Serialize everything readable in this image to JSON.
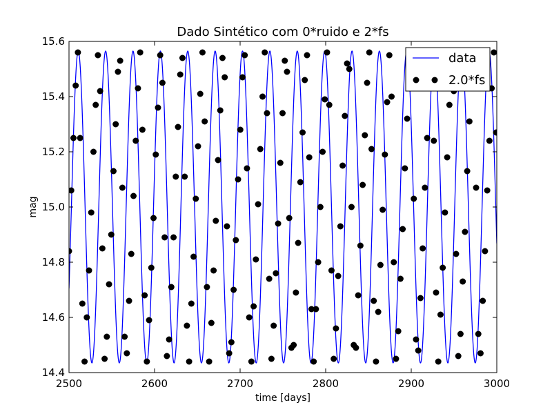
{
  "chart_data": {
    "type": "line",
    "title": "Dado Sintético com 0*ruido e 2*fs",
    "xlabel": "time [days]",
    "ylabel": "mag",
    "xlim": [
      2500,
      3000
    ],
    "ylim": [
      14.4,
      15.6
    ],
    "grid": false,
    "legend": {
      "placement": "top-right",
      "entries": [
        "data",
        "2.0*fs"
      ]
    },
    "x_ticks": [
      "2500",
      "2600",
      "2700",
      "2800",
      "2900",
      "3000"
    ],
    "y_ticks": [
      "14.4",
      "14.6",
      "14.8",
      "15.0",
      "15.2",
      "15.4",
      "15.6"
    ],
    "series": [
      {
        "name": "data",
        "kind": "line",
        "color": "#0000ff",
        "model": {
          "mean": 15.0,
          "amplitude": 0.565,
          "period_days": 32.0,
          "phase_ref_time": 2510.8
        }
      },
      {
        "name": "2.0*fs",
        "kind": "markers",
        "color": "#000000",
        "points": [
          [
            2500,
            14.84
          ],
          [
            2502.6,
            15.06
          ],
          [
            2505.2,
            15.25
          ],
          [
            2507.8,
            15.44
          ],
          [
            2510.4,
            15.56
          ],
          [
            2513.0,
            15.25
          ],
          [
            2515.6,
            14.65
          ],
          [
            2518.2,
            14.44
          ],
          [
            2520.8,
            14.6
          ],
          [
            2523.4,
            14.77
          ],
          [
            2526.0,
            14.98
          ],
          [
            2528.6,
            15.2
          ],
          [
            2531.2,
            15.37
          ],
          [
            2533.8,
            15.55
          ],
          [
            2536.4,
            15.42
          ],
          [
            2539.0,
            14.85
          ],
          [
            2541.6,
            14.45
          ],
          [
            2544.2,
            14.53
          ],
          [
            2546.8,
            14.72
          ],
          [
            2549.4,
            14.9
          ],
          [
            2552.0,
            15.13
          ],
          [
            2554.6,
            15.3
          ],
          [
            2557.2,
            15.49
          ],
          [
            2559.8,
            15.53
          ],
          [
            2562.4,
            15.07
          ],
          [
            2565.0,
            14.53
          ],
          [
            2567.6,
            14.47
          ],
          [
            2570.2,
            14.66
          ],
          [
            2572.8,
            14.83
          ],
          [
            2575.4,
            15.04
          ],
          [
            2578.0,
            15.24
          ],
          [
            2580.6,
            15.43
          ],
          [
            2583.2,
            15.56
          ],
          [
            2585.8,
            15.28
          ],
          [
            2588.4,
            14.68
          ],
          [
            2591.0,
            14.44
          ],
          [
            2593.6,
            14.59
          ],
          [
            2596.2,
            14.78
          ],
          [
            2598.8,
            14.96
          ],
          [
            2601.4,
            15.19
          ],
          [
            2604.0,
            15.36
          ],
          [
            2606.6,
            15.55
          ],
          [
            2609.2,
            15.45
          ],
          [
            2611.8,
            14.89
          ],
          [
            2614.4,
            14.46
          ],
          [
            2617.0,
            14.52
          ],
          [
            2619.6,
            14.71
          ],
          [
            2622.2,
            14.89
          ],
          [
            2624.8,
            15.11
          ],
          [
            2627.4,
            15.29
          ],
          [
            2630.0,
            15.48
          ],
          [
            2632.6,
            15.54
          ],
          [
            2635.2,
            15.11
          ],
          [
            2637.8,
            14.57
          ],
          [
            2640.4,
            14.44
          ],
          [
            2643.0,
            14.65
          ],
          [
            2645.6,
            14.82
          ],
          [
            2648.2,
            15.03
          ],
          [
            2650.8,
            15.22
          ],
          [
            2653.4,
            15.41
          ],
          [
            2656.0,
            15.56
          ],
          [
            2658.6,
            15.31
          ],
          [
            2661.2,
            14.71
          ],
          [
            2663.8,
            14.44
          ],
          [
            2666.4,
            14.58
          ],
          [
            2669.0,
            14.77
          ],
          [
            2671.6,
            14.95
          ],
          [
            2674.2,
            15.17
          ],
          [
            2676.8,
            15.35
          ],
          [
            2679.4,
            15.54
          ],
          [
            2682.0,
            15.47
          ],
          [
            2684.6,
            14.93
          ],
          [
            2687.2,
            14.47
          ],
          [
            2689.8,
            14.51
          ],
          [
            2692.4,
            14.7
          ],
          [
            2695.0,
            14.88
          ],
          [
            2697.6,
            15.1
          ],
          [
            2700.2,
            15.28
          ],
          [
            2702.8,
            15.47
          ],
          [
            2705.4,
            15.55
          ],
          [
            2708.0,
            15.14
          ],
          [
            2710.6,
            14.6
          ],
          [
            2713.2,
            14.44
          ],
          [
            2715.8,
            14.64
          ],
          [
            2718.4,
            14.81
          ],
          [
            2721.0,
            15.01
          ],
          [
            2723.6,
            15.21
          ],
          [
            2726.2,
            15.4
          ],
          [
            2728.8,
            15.56
          ],
          [
            2731.4,
            15.34
          ],
          [
            2734.0,
            14.74
          ],
          [
            2736.6,
            14.45
          ],
          [
            2739.2,
            14.57
          ],
          [
            2741.8,
            14.76
          ],
          [
            2744.4,
            14.94
          ],
          [
            2747.0,
            15.16
          ],
          [
            2749.6,
            15.34
          ],
          [
            2752.2,
            15.53
          ],
          [
            2754.8,
            15.49
          ],
          [
            2757.4,
            14.96
          ],
          [
            2760.0,
            14.49
          ],
          [
            2762.6,
            14.5
          ],
          [
            2765.2,
            14.69
          ],
          [
            2767.8,
            14.87
          ],
          [
            2770.4,
            15.09
          ],
          [
            2773.0,
            15.27
          ],
          [
            2775.6,
            15.46
          ],
          [
            2778.2,
            15.55
          ],
          [
            2780.8,
            15.18
          ],
          [
            2783.4,
            14.63
          ],
          [
            2786.0,
            14.44
          ],
          [
            2788.6,
            14.63
          ],
          [
            2791.2,
            14.8
          ],
          [
            2793.8,
            15.0
          ],
          [
            2796.4,
            15.2
          ],
          [
            2799.0,
            15.39
          ],
          [
            2801.6,
            15.56
          ],
          [
            2804.2,
            15.37
          ],
          [
            2806.8,
            14.77
          ],
          [
            2809.4,
            14.45
          ],
          [
            2812.0,
            14.56
          ],
          [
            2814.6,
            14.75
          ],
          [
            2817.2,
            14.93
          ],
          [
            2819.8,
            15.15
          ],
          [
            2822.4,
            15.33
          ],
          [
            2825.0,
            15.52
          ],
          [
            2827.6,
            15.5
          ],
          [
            2830.2,
            15.0
          ],
          [
            2832.8,
            14.5
          ],
          [
            2835.4,
            14.49
          ],
          [
            2838.0,
            14.68
          ],
          [
            2840.6,
            14.86
          ],
          [
            2843.2,
            15.08
          ],
          [
            2845.8,
            15.26
          ],
          [
            2848.4,
            15.45
          ],
          [
            2851.0,
            15.56
          ],
          [
            2853.6,
            15.21
          ],
          [
            2856.2,
            14.66
          ],
          [
            2858.8,
            14.44
          ],
          [
            2861.4,
            14.62
          ],
          [
            2864.0,
            14.79
          ],
          [
            2866.6,
            14.99
          ],
          [
            2869.2,
            15.19
          ],
          [
            2871.8,
            15.38
          ],
          [
            2874.4,
            15.55
          ],
          [
            2877.0,
            15.4
          ],
          [
            2879.6,
            14.8
          ],
          [
            2882.2,
            14.45
          ],
          [
            2884.8,
            14.55
          ],
          [
            2887.4,
            14.74
          ],
          [
            2890.0,
            14.92
          ],
          [
            2892.6,
            15.14
          ],
          [
            2895.2,
            15.32
          ],
          [
            2897.8,
            15.51
          ],
          [
            2900.4,
            15.51
          ],
          [
            2903.0,
            15.03
          ],
          [
            2905.6,
            14.52
          ],
          [
            2908.2,
            14.48
          ],
          [
            2910.8,
            14.67
          ],
          [
            2913.4,
            14.85
          ],
          [
            2916.0,
            15.07
          ],
          [
            2918.6,
            15.25
          ],
          [
            2921.2,
            15.44
          ],
          [
            2923.8,
            15.56
          ],
          [
            2926.4,
            15.24
          ],
          [
            2929.0,
            14.69
          ],
          [
            2931.6,
            14.44
          ],
          [
            2934.2,
            14.61
          ],
          [
            2936.8,
            14.78
          ],
          [
            2939.4,
            14.98
          ],
          [
            2942.0,
            15.18
          ],
          [
            2944.6,
            15.37
          ],
          [
            2947.2,
            15.55
          ],
          [
            2949.8,
            15.42
          ],
          [
            2952.4,
            14.83
          ],
          [
            2955.0,
            14.46
          ],
          [
            2957.6,
            14.54
          ],
          [
            2960.2,
            14.73
          ],
          [
            2962.8,
            14.91
          ],
          [
            2965.4,
            15.13
          ],
          [
            2968.0,
            15.31
          ],
          [
            2970.6,
            15.5
          ],
          [
            2973.2,
            15.52
          ],
          [
            2975.8,
            15.07
          ],
          [
            2978.4,
            14.54
          ],
          [
            2981.0,
            14.47
          ],
          [
            2983.6,
            14.66
          ],
          [
            2986.2,
            14.84
          ],
          [
            2988.8,
            15.06
          ],
          [
            2991.4,
            15.24
          ],
          [
            2994.0,
            15.43
          ],
          [
            2996.6,
            15.56
          ],
          [
            2999.2,
            15.27
          ]
        ]
      }
    ]
  }
}
